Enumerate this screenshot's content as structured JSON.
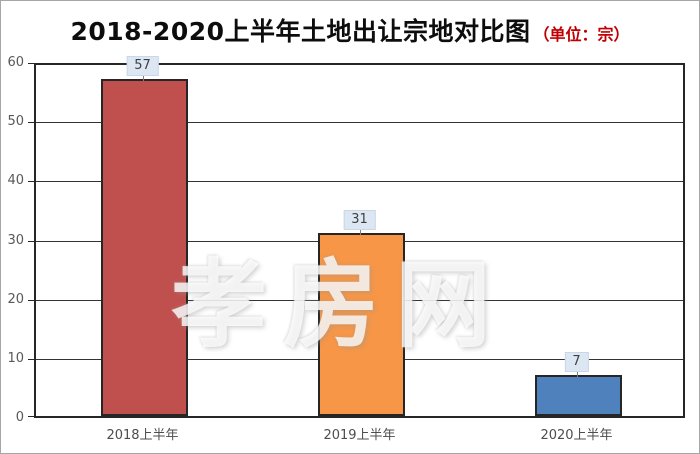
{
  "watermark": "孝房网",
  "chart_data": {
    "type": "bar",
    "title": "2018-2020上半年土地出让宗地对比图",
    "title_unit": "（单位：宗）",
    "title_unit_color": "#c00000",
    "categories": [
      "2018上半年",
      "2019上半年",
      "2020上半年"
    ],
    "values": [
      57,
      31,
      7
    ],
    "series_colors": [
      "#c0504d",
      "#f79646",
      "#4f81bd"
    ],
    "bar_border_color": "#262626",
    "value_label_bg": "#dde7f3",
    "xlabel": "",
    "ylabel": "",
    "ylim": [
      0,
      60
    ],
    "yticks": [
      0,
      10,
      20,
      30,
      40,
      50,
      60
    ],
    "grid": true,
    "legend": false
  }
}
